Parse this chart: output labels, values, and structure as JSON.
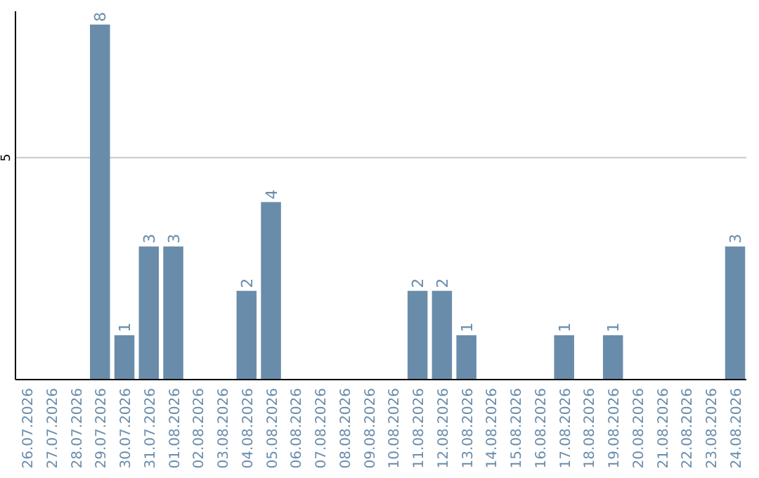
{
  "chart_data": {
    "type": "bar",
    "categories": [
      "26.07.2026",
      "27.07.2026",
      "28.07.2026",
      "29.07.2026",
      "30.07.2026",
      "31.07.2026",
      "01.08.2026",
      "02.08.2026",
      "03.08.2026",
      "04.08.2026",
      "05.08.2026",
      "06.08.2026",
      "07.08.2026",
      "08.08.2026",
      "09.08.2026",
      "10.08.2026",
      "11.08.2026",
      "12.08.2026",
      "13.08.2026",
      "14.08.2026",
      "15.08.2026",
      "16.08.2026",
      "17.08.2026",
      "18.08.2026",
      "19.08.2026",
      "20.08.2026",
      "21.08.2026",
      "22.08.2026",
      "23.08.2026",
      "24.08.2026"
    ],
    "values": [
      0,
      0,
      0,
      8,
      1,
      3,
      3,
      0,
      0,
      2,
      4,
      0,
      0,
      0,
      0,
      0,
      2,
      2,
      1,
      0,
      0,
      0,
      1,
      0,
      1,
      0,
      0,
      0,
      0,
      3
    ],
    "value_labels": [
      null,
      null,
      null,
      "8",
      "1",
      "3",
      "3",
      null,
      null,
      "2",
      "4",
      null,
      null,
      null,
      null,
      null,
      "2",
      "2",
      "1",
      null,
      null,
      null,
      "1",
      null,
      "1",
      null,
      null,
      null,
      null,
      "3"
    ],
    "color": "#6a8cab",
    "ylim": [
      0,
      8.3
    ],
    "yticks": [
      5
    ],
    "grid": "y"
  }
}
